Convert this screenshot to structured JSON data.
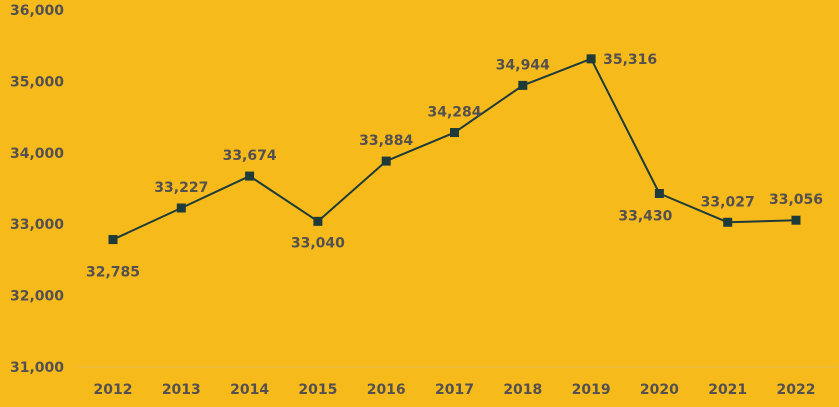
{
  "chart_data": {
    "type": "line",
    "categories": [
      "2012",
      "2013",
      "2014",
      "2015",
      "2016",
      "2017",
      "2018",
      "2019",
      "2020",
      "2021",
      "2022"
    ],
    "values": [
      32785,
      33227,
      33674,
      33040,
      33884,
      34284,
      34944,
      35316,
      33430,
      33027,
      33056
    ],
    "data_labels": [
      "32,785",
      "33,227",
      "33,674",
      "33,040",
      "33,884",
      "34,284",
      "34,944",
      "35,316",
      "33,430",
      "33,027",
      "33,056"
    ],
    "y_ticks": [
      31000,
      32000,
      33000,
      34000,
      35000,
      36000
    ],
    "y_tick_labels": [
      "31,000",
      "32,000",
      "33,000",
      "34,000",
      "35,000",
      "36,000"
    ],
    "ylim": [
      31000,
      36000
    ],
    "title": "",
    "xlabel": "",
    "ylabel": "",
    "grid": false,
    "legend": "none",
    "colors": {
      "background": "#F6BB1B",
      "line": "#1E3B3A",
      "marker": "#1E3B3A",
      "text": "#545050",
      "axis": "#E6B85A"
    }
  }
}
